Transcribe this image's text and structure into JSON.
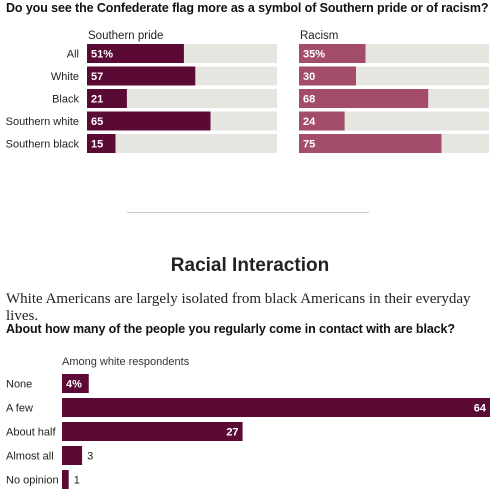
{
  "question1": "Do you see the Confederate flag more as a symbol of Southern pride or of racism?",
  "section_title": "Racial Interaction",
  "section_text": "White Americans are largely isolated from black Americans in their everyday lives.",
  "question2": "About how many of the people you regularly come in contact with are black?",
  "colors": {
    "dark": "#5b0a35",
    "light": "#a34d6a",
    "track": "#e7e5e0"
  },
  "chart_data": [
    {
      "type": "bar",
      "categories": [
        "All",
        "White",
        "Black",
        "Southern white",
        "Southern black"
      ],
      "xlim": [
        0,
        100
      ],
      "series": [
        {
          "name": "Southern pride",
          "values": [
            51,
            57,
            21,
            65,
            15
          ],
          "labels": [
            "51%",
            "57",
            "21",
            "65",
            "15"
          ]
        },
        {
          "name": "Racism",
          "values": [
            35,
            30,
            68,
            24,
            75
          ],
          "labels": [
            "35%",
            "30",
            "68",
            "24",
            "75"
          ]
        }
      ]
    },
    {
      "type": "bar",
      "subtitle": "Among white respondents",
      "categories": [
        "None",
        "A few",
        "About half",
        "Almost all",
        "No opinion"
      ],
      "values": [
        4,
        64,
        27,
        3,
        1
      ],
      "labels": [
        "4%",
        "64",
        "27",
        "3",
        "1"
      ],
      "xlim": [
        0,
        64
      ]
    }
  ]
}
